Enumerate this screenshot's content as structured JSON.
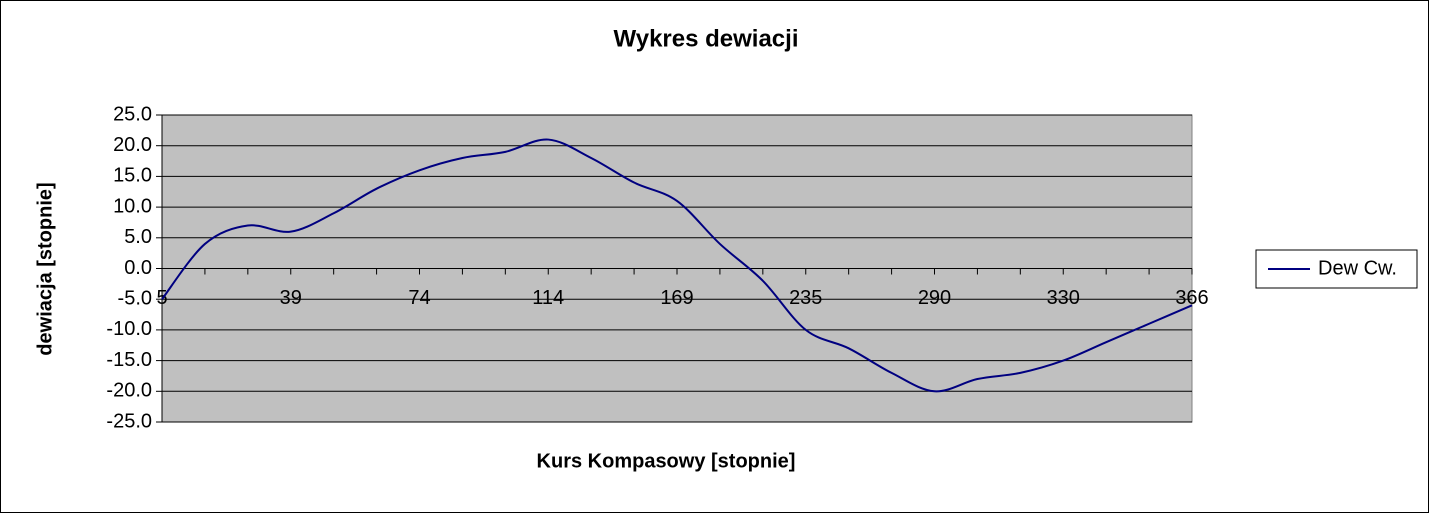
{
  "chart_data": {
    "type": "line",
    "title": "Wykres dewiacji",
    "x_label": "Kurs Kompasowy   [stopnie]",
    "y_label": "dewiacja [stopnie]",
    "categories": [
      "5",
      null,
      null,
      "39",
      null,
      null,
      "74",
      null,
      null,
      "114",
      null,
      null,
      "169",
      null,
      null,
      "235",
      null,
      null,
      "290",
      null,
      null,
      "330",
      null,
      null,
      "366"
    ],
    "series": [
      {
        "name": "Dew Cw.",
        "color": "#000080",
        "values": [
          -5,
          4,
          7,
          6,
          9,
          13,
          16,
          18,
          19,
          21,
          18,
          14,
          11,
          4,
          -2,
          -10,
          -13,
          -17,
          -20,
          -18,
          -17,
          -15,
          -12,
          -9,
          -6
        ]
      }
    ],
    "ylim": [
      -25,
      25
    ],
    "yticks": [
      {
        "value": -25,
        "label": "-25.0"
      },
      {
        "value": -20,
        "label": "-20.0"
      },
      {
        "value": -15,
        "label": "-15.0"
      },
      {
        "value": -10,
        "label": "-10.0"
      },
      {
        "value": -5,
        "label": "-5.0"
      },
      {
        "value": 0,
        "label": "0.0"
      },
      {
        "value": 5,
        "label": "5.0"
      },
      {
        "value": 10,
        "label": "10.0"
      },
      {
        "value": 15,
        "label": "15.0"
      },
      {
        "value": 20,
        "label": "20.0"
      },
      {
        "value": 25,
        "label": "25.0"
      }
    ],
    "grid": true,
    "legend": "right",
    "plot_background": "#c0c0c0"
  }
}
